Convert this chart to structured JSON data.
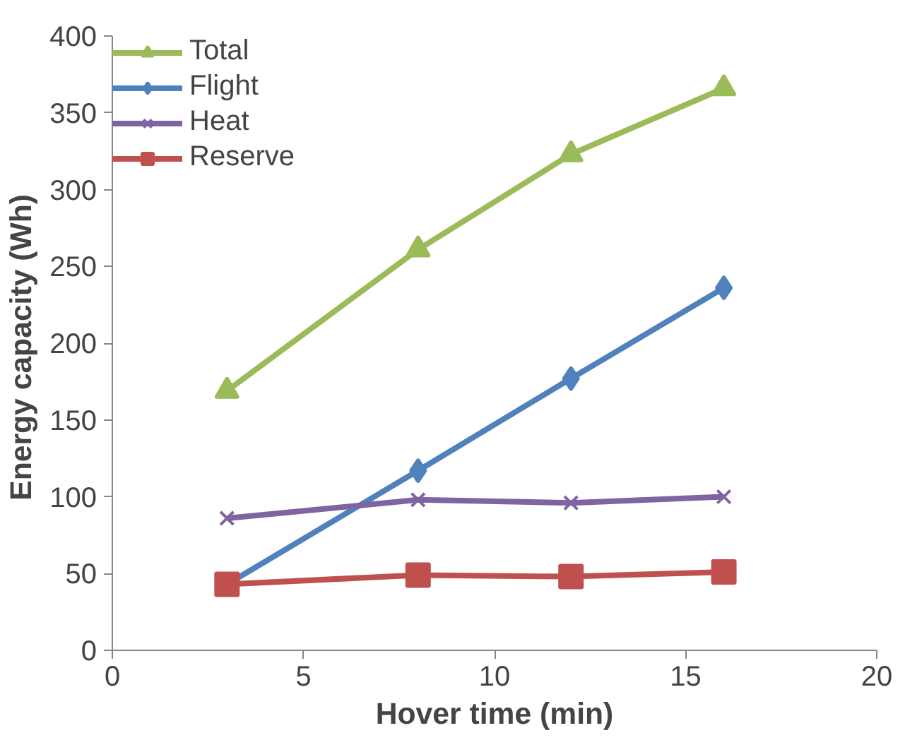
{
  "chart_data": {
    "type": "line",
    "xlabel": "Hover time (min)",
    "ylabel": "Energy  capacity (Wh)",
    "x": [
      3,
      8,
      12,
      16
    ],
    "series": [
      {
        "name": "Total",
        "color": "#9bbb59",
        "values": [
          169,
          261,
          323,
          366
        ],
        "marker": "triangle"
      },
      {
        "name": "Flight",
        "color": "#4f81bd",
        "values": [
          43,
          117,
          177,
          236
        ],
        "marker": "diamond"
      },
      {
        "name": "Heat",
        "color": "#8064a2",
        "values": [
          86,
          98,
          96,
          100
        ],
        "marker": "cross"
      },
      {
        "name": "Reserve",
        "color": "#c0504d",
        "values": [
          43,
          49,
          48,
          51
        ],
        "marker": "square"
      }
    ],
    "xlim": [
      0,
      20
    ],
    "xticks": [
      0,
      5,
      10,
      15,
      20
    ],
    "ylim": [
      0,
      400
    ],
    "yticks": [
      0,
      50,
      100,
      150,
      200,
      250,
      300,
      350,
      400
    ],
    "grid": false,
    "legend": "top left",
    "line_style": "solid"
  }
}
